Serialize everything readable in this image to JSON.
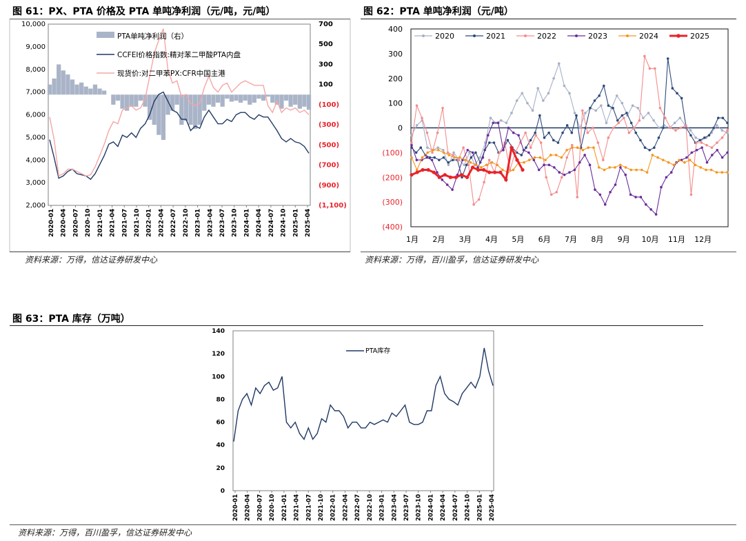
{
  "fig61": {
    "title": "图 61：PX、PTA 价格及 PTA 单吨净利润（元/吨，元/吨）",
    "source": "资料来源：万得，信达证券研发中心",
    "chart_data": {
      "type": "line",
      "left_ylim": [
        2000,
        10000
      ],
      "left_ticks": [
        "10,000",
        "9,000",
        "8,000",
        "7,000",
        "6,000",
        "5,000",
        "4,000",
        "3,000",
        "2,000"
      ],
      "right_ylim": [
        -1100,
        700
      ],
      "right_ticks": [
        "700",
        "500",
        "300",
        "100",
        "(100)",
        "(300)",
        "(500)",
        "(700)",
        "(900)",
        "(1,100)"
      ],
      "x_ticks": [
        "2020-01",
        "2020-04",
        "2020-07",
        "2020-10",
        "2021-01",
        "2021-04",
        "2021-07",
        "2021-10",
        "2022-01",
        "2022-04",
        "2022-07",
        "2022-10",
        "2023-01",
        "2023-04",
        "2023-07",
        "2023-10",
        "2024-01",
        "2024-04",
        "2024-07",
        "2024-10",
        "2025-01",
        "2025-04"
      ],
      "legend": [
        "PTA单吨净利润（右）",
        "CCFEI价格指数:精对苯二甲酸PTA内盘",
        "现货价:对二甲苯PX:CFR中国主港"
      ],
      "series": [
        {
          "name": "CCFEI价格指数:精对苯二甲酸PTA内盘",
          "color": "#1f3864",
          "axis": "left",
          "values": [
            4900,
            4100,
            3200,
            3300,
            3500,
            3600,
            3400,
            3350,
            3300,
            3150,
            3400,
            3800,
            4200,
            4700,
            4800,
            4600,
            5100,
            5000,
            5200,
            5000,
            5400,
            5600,
            6000,
            6600,
            6900,
            7000,
            6600,
            6200,
            6100,
            5800,
            5800,
            5300,
            5500,
            5400,
            5900,
            6200,
            5900,
            5600,
            5600,
            5800,
            5700,
            6000,
            6100,
            6100,
            5900,
            5800,
            6000,
            5900,
            5900,
            5600,
            5300,
            4950,
            4800,
            4950,
            4800,
            4750,
            4600,
            4300
          ]
        },
        {
          "name": "现货价:对二甲苯PX:CFR中国主港",
          "color": "#f4a6a6",
          "axis": "left",
          "values": [
            5900,
            4900,
            3300,
            3400,
            3600,
            3600,
            3500,
            3400,
            3300,
            3350,
            3700,
            4200,
            4700,
            5300,
            5700,
            5600,
            6200,
            6300,
            6400,
            6200,
            6300,
            6700,
            7700,
            8700,
            9300,
            9800,
            8000,
            7400,
            7500,
            6800,
            6900,
            6500,
            6400,
            6500,
            7200,
            7700,
            7200,
            7000,
            7300,
            7400,
            7000,
            7200,
            7400,
            7500,
            7400,
            7300,
            7300,
            7300,
            6400,
            6100,
            6600,
            6100,
            6300,
            6200,
            6300,
            6100,
            6200,
            6000
          ]
        },
        {
          "name": "PTA单吨净利润（右）",
          "color": "#aab4c8",
          "axis": "right",
          "type": "bar",
          "values": [
            100,
            160,
            300,
            240,
            200,
            150,
            100,
            120,
            80,
            60,
            100,
            60,
            40,
            0,
            -100,
            -60,
            -140,
            -160,
            -120,
            -120,
            -60,
            -120,
            -250,
            -300,
            -400,
            -450,
            -200,
            -160,
            -100,
            -300,
            -260,
            -300,
            -340,
            -300,
            -160,
            -100,
            -120,
            -80,
            -120,
            -40,
            -70,
            -60,
            -80,
            -60,
            -100,
            -80,
            -40,
            -60,
            -20,
            -80,
            -100,
            -140,
            -60,
            -120,
            -100,
            -140,
            -120,
            -150
          ]
        }
      ]
    }
  },
  "fig62": {
    "title": "图 62：PTA 单吨净利润（元/吨）",
    "source": "资料来源：万得，百川盈孚，信达证券研发中心",
    "chart_data": {
      "type": "line",
      "ylim": [
        -400,
        400
      ],
      "y_ticks": [
        "400",
        "300",
        "200",
        "100",
        "0",
        "(100)",
        "(200)",
        "(300)",
        "(400)"
      ],
      "x_ticks": [
        "1月",
        "2月",
        "3月",
        "4月",
        "5月",
        "6月",
        "7月",
        "8月",
        "9月",
        "10月",
        "11月",
        "12月"
      ],
      "legend": [
        "2020",
        "2021",
        "2022",
        "2023",
        "2024",
        "2025"
      ],
      "series": [
        {
          "name": "2020",
          "color": "#a6b0c5",
          "values": [
            -30,
            10,
            30,
            -80,
            -90,
            -80,
            -90,
            -150,
            -100,
            -130,
            -150,
            -100,
            -150,
            -120,
            -60,
            40,
            20,
            30,
            20,
            60,
            110,
            140,
            100,
            70,
            160,
            110,
            140,
            200,
            260,
            170,
            140,
            60,
            0,
            60,
            80,
            70,
            90,
            20,
            80,
            130,
            100,
            50,
            90,
            80,
            40,
            60,
            30,
            0,
            10,
            0,
            20,
            40,
            10,
            -10,
            -40,
            -50,
            -40,
            -20,
            10,
            -10,
            -20
          ]
        },
        {
          "name": "2021",
          "color": "#2e4a7a",
          "values": [
            -80,
            -100,
            -80,
            -110,
            -120,
            -120,
            -130,
            -120,
            -140,
            -130,
            -130,
            -200,
            -150,
            -120,
            -100,
            -140,
            -90,
            -60,
            -60,
            -100,
            -90,
            -50,
            -80,
            -100,
            -110,
            -80,
            -50,
            -20,
            50,
            -40,
            -20,
            -50,
            -60,
            -20,
            10,
            -20,
            50,
            -80,
            0,
            80,
            110,
            130,
            170,
            90,
            80,
            30,
            50,
            60,
            20,
            -20,
            -50,
            -80,
            -90,
            -80,
            -40,
            0,
            280,
            160,
            140,
            120,
            0,
            -30,
            -60,
            -50,
            -40,
            -30,
            0,
            40,
            40,
            20
          ]
        },
        {
          "name": "2022",
          "color": "#f48c8c",
          "values": [
            -60,
            90,
            40,
            -20,
            -100,
            -20,
            80,
            -100,
            -110,
            -130,
            -80,
            -150,
            -310,
            -290,
            -220,
            -130,
            -180,
            -100,
            -60,
            -170,
            -100,
            -60,
            -20,
            -80,
            -30,
            -60,
            -200,
            -270,
            -260,
            -200,
            -120,
            -70,
            -280,
            70,
            -20,
            0,
            -60,
            -130,
            -40,
            0,
            20,
            40,
            -20,
            0,
            30,
            290,
            240,
            240,
            80,
            40,
            0,
            -10,
            0,
            10,
            -270,
            -60,
            -60,
            -70,
            -80,
            -60,
            -40,
            -10
          ]
        },
        {
          "name": "2023",
          "color": "#6a2c9a",
          "values": [
            -70,
            -130,
            -130,
            -120,
            -130,
            -180,
            -210,
            -230,
            -250,
            -190,
            -130,
            -90,
            -100,
            -160,
            -120,
            -30,
            20,
            20,
            -90,
            0,
            -20,
            -30,
            -90,
            -100,
            -130,
            -170,
            -150,
            -150,
            -160,
            -180,
            -190,
            -180,
            -170,
            -140,
            -110,
            -150,
            -250,
            -270,
            -310,
            -260,
            -230,
            -160,
            -190,
            -270,
            -280,
            -280,
            -310,
            -330,
            -350,
            -240,
            -200,
            -180,
            -140,
            -130,
            -120,
            -100,
            -90,
            -80,
            -140,
            -110,
            -90,
            -120,
            -100
          ]
        },
        {
          "name": "2024",
          "color": "#f5961e",
          "values": [
            -120,
            -170,
            -120,
            -100,
            -90,
            -90,
            -100,
            -110,
            -120,
            -120,
            -130,
            -140,
            -150,
            -160,
            -150,
            -140,
            -150,
            -170,
            -180,
            -170,
            -140,
            -140,
            -130,
            -120,
            -120,
            -130,
            -110,
            -110,
            -120,
            -90,
            -80,
            -80,
            -90,
            -80,
            -80,
            -160,
            -170,
            -160,
            -160,
            -150,
            -160,
            -170,
            -170,
            -170,
            -180,
            -110,
            -120,
            -130,
            -140,
            -150,
            -130,
            -140,
            -130,
            -150,
            -160,
            -170,
            -170,
            -180,
            -180,
            -180
          ]
        },
        {
          "name": "2025",
          "color": "#e8232a",
          "values": [
            -190,
            -180,
            -170,
            -170,
            -180,
            -200,
            -190,
            -200,
            -200,
            -190,
            -200,
            -160,
            -170,
            -170,
            -180,
            -180,
            -180,
            -210,
            -80,
            -130,
            -170
          ]
        }
      ]
    }
  },
  "fig63": {
    "title": "图 63：PTA 库存（万吨）",
    "source": "资料来源：万得，百川盈孚，信达证券研发中心",
    "chart_data": {
      "type": "line",
      "ylim": [
        0,
        140
      ],
      "y_ticks": [
        "140",
        "120",
        "100",
        "80",
        "60",
        "40",
        "20",
        "0"
      ],
      "x_ticks": [
        "2020-01",
        "2020-04",
        "2020-07",
        "2020-10",
        "2021-01",
        "2021-04",
        "2021-07",
        "2021-10",
        "2022-01",
        "2022-04",
        "2022-07",
        "2022-10",
        "2023-01",
        "2023-04",
        "2023-07",
        "2023-10",
        "2024-01",
        "2024-04",
        "2024-07",
        "2024-10",
        "2025-01",
        "2025-04"
      ],
      "legend": [
        "PTA库存"
      ],
      "series": [
        {
          "name": "PTA库存",
          "color": "#1f3864",
          "values": [
            43,
            70,
            80,
            85,
            75,
            90,
            85,
            92,
            95,
            88,
            90,
            100,
            60,
            55,
            60,
            50,
            45,
            55,
            45,
            50,
            63,
            60,
            75,
            70,
            70,
            65,
            55,
            60,
            60,
            55,
            55,
            60,
            58,
            60,
            62,
            60,
            68,
            65,
            70,
            75,
            60,
            58,
            58,
            60,
            70,
            70,
            92,
            100,
            85,
            80,
            78,
            75,
            85,
            90,
            95,
            90,
            100,
            125,
            105,
            92
          ]
        }
      ]
    }
  }
}
